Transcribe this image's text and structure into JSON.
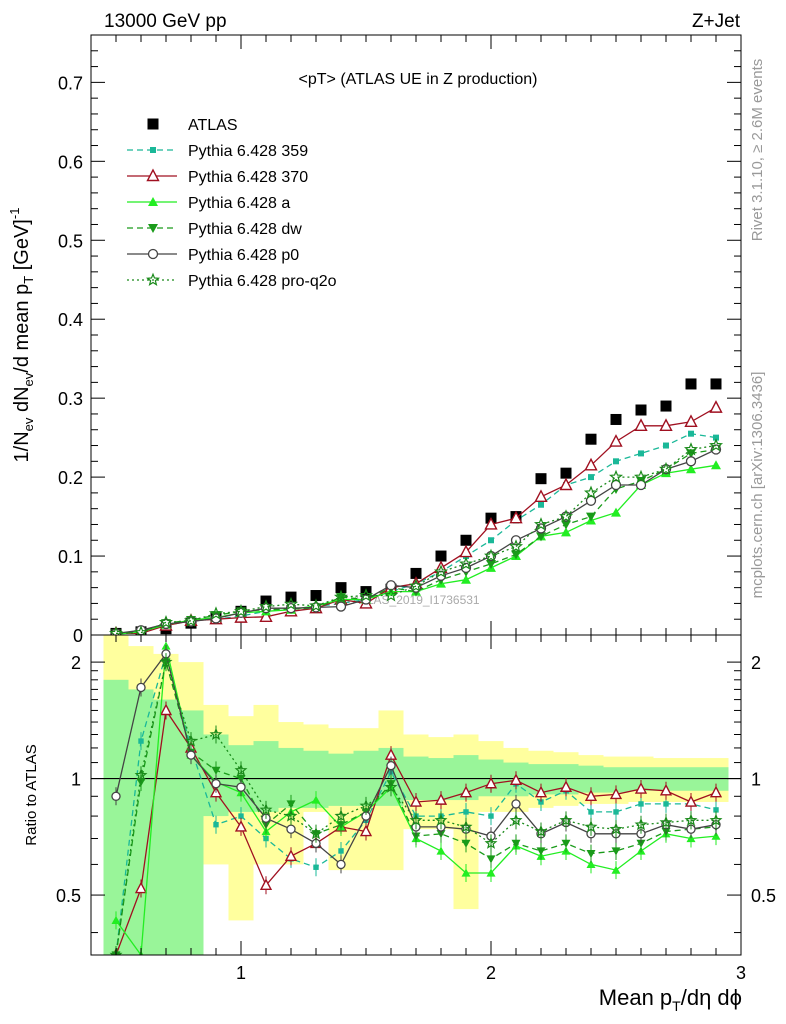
{
  "header": {
    "left": "13000 GeV pp",
    "right": "Z+Jet"
  },
  "side_labels": {
    "rivet": "Rivet 3.1.10, ≥ 2.6M events",
    "mcplots": "mcplots.cern.ch [arXiv:1306.3436]"
  },
  "watermark": "ATLAS_2019_I1736531",
  "colors": {
    "band_inner": "#99f599",
    "band_outer": "#ffff9e",
    "data": "#000000"
  },
  "chart_data": [
    {
      "id": "main",
      "type": "scatter",
      "title": "<pT> (ATLAS UE in Z production)",
      "ylabel": "1/Nev dNev/d mean pT [GeV]^-1",
      "xlim": [
        0.4,
        3.0
      ],
      "ylim": [
        0,
        0.76
      ],
      "yticks": [
        0,
        0.1,
        0.2,
        0.3,
        0.4,
        0.5,
        0.6,
        0.7
      ],
      "ytick_labels": [
        "0",
        "0.1",
        "0.2",
        "0.3",
        "0.4",
        "0.5",
        "0.6",
        "0.7"
      ],
      "legend_position": "top-left",
      "x": [
        0.5,
        0.6,
        0.7,
        0.8,
        0.9,
        1.0,
        1.1,
        1.2,
        1.3,
        1.4,
        1.5,
        1.6,
        1.7,
        1.8,
        1.9,
        2.0,
        2.1,
        2.2,
        2.3,
        2.4,
        2.5,
        2.6,
        2.7,
        2.8,
        2.9
      ],
      "series": [
        {
          "name": "ATLAS",
          "marker": "square",
          "color": "#000000",
          "line": "none",
          "values": [
            0.002,
            0.004,
            0.008,
            0.015,
            0.022,
            0.03,
            0.043,
            0.048,
            0.05,
            0.06,
            0.055,
            0.058,
            0.078,
            0.1,
            0.12,
            0.148,
            0.15,
            0.198,
            0.205,
            0.248,
            0.273,
            0.285,
            0.29,
            0.318,
            0.318
          ]
        },
        {
          "name": "Pythia 6.428 359",
          "marker": "square-small",
          "color": "#1ab898",
          "line": "dashed",
          "values": [
            0.002,
            0.005,
            0.012,
            0.018,
            0.02,
            0.024,
            0.03,
            0.033,
            0.036,
            0.04,
            0.045,
            0.055,
            0.065,
            0.08,
            0.1,
            0.12,
            0.145,
            0.165,
            0.19,
            0.2,
            0.22,
            0.23,
            0.24,
            0.255,
            0.25
          ]
        },
        {
          "name": "Pythia 6.428 370",
          "marker": "triangle-open",
          "color": "#a01020",
          "line": "solid",
          "values": [
            0.002,
            0.002,
            0.012,
            0.018,
            0.02,
            0.022,
            0.023,
            0.03,
            0.034,
            0.045,
            0.04,
            0.06,
            0.065,
            0.085,
            0.105,
            0.14,
            0.148,
            0.175,
            0.19,
            0.215,
            0.245,
            0.265,
            0.265,
            0.27,
            0.288
          ]
        },
        {
          "name": "Pythia 6.428 a",
          "marker": "triangle",
          "color": "#22ee22",
          "line": "solid",
          "values": [
            0.001,
            0.004,
            0.013,
            0.019,
            0.022,
            0.028,
            0.03,
            0.032,
            0.037,
            0.045,
            0.045,
            0.055,
            0.055,
            0.065,
            0.07,
            0.085,
            0.1,
            0.125,
            0.13,
            0.145,
            0.155,
            0.19,
            0.205,
            0.21,
            0.215
          ]
        },
        {
          "name": "Pythia 6.428 dw",
          "marker": "triangle-down",
          "color": "#1a9b1a",
          "line": "dashed",
          "values": [
            0.002,
            0.004,
            0.015,
            0.019,
            0.025,
            0.03,
            0.032,
            0.033,
            0.034,
            0.048,
            0.045,
            0.06,
            0.055,
            0.07,
            0.08,
            0.09,
            0.102,
            0.125,
            0.14,
            0.15,
            0.185,
            0.195,
            0.21,
            0.23,
            0.235
          ]
        },
        {
          "name": "Pythia 6.428 p0",
          "marker": "circle-open",
          "color": "#444444",
          "line": "solid",
          "values": [
            0.002,
            0.006,
            0.014,
            0.017,
            0.021,
            0.028,
            0.034,
            0.034,
            0.035,
            0.036,
            0.045,
            0.063,
            0.06,
            0.075,
            0.085,
            0.1,
            0.12,
            0.135,
            0.15,
            0.17,
            0.19,
            0.19,
            0.21,
            0.22,
            0.235
          ]
        },
        {
          "name": "Pythia 6.428 pro-q2o",
          "marker": "star-open",
          "color": "#1a8a1a",
          "line": "dotted",
          "values": [
            0.002,
            0.003,
            0.016,
            0.018,
            0.027,
            0.03,
            0.036,
            0.039,
            0.037,
            0.048,
            0.05,
            0.05,
            0.062,
            0.08,
            0.09,
            0.1,
            0.112,
            0.14,
            0.15,
            0.18,
            0.2,
            0.2,
            0.21,
            0.235,
            0.24
          ]
        }
      ]
    },
    {
      "id": "ratio",
      "type": "line",
      "ylabel": "Ratio to ATLAS",
      "xlabel": "Mean pT/dη dϕ",
      "xlim": [
        0.4,
        3.0
      ],
      "ylim": [
        0.35,
        2.35
      ],
      "log_y": true,
      "xticks": [
        1,
        2,
        3
      ],
      "xtick_labels": [
        "1",
        "2",
        "3"
      ],
      "yticks": [
        0.5,
        1,
        2
      ],
      "ytick_labels": [
        "0.5",
        "1",
        "2"
      ],
      "band_bins": [
        {
          "x0": 0.45,
          "x1": 0.55,
          "inner": [
            0.35,
            1.8
          ],
          "outer": [
            0.35,
            2.35
          ]
        },
        {
          "x0": 0.55,
          "x1": 0.65,
          "inner": [
            0.35,
            1.7
          ],
          "outer": [
            0.35,
            2.2
          ]
        },
        {
          "x0": 0.65,
          "x1": 0.75,
          "inner": [
            0.35,
            1.6
          ],
          "outer": [
            0.35,
            2.1
          ]
        },
        {
          "x0": 0.75,
          "x1": 0.85,
          "inner": [
            0.35,
            1.5
          ],
          "outer": [
            0.35,
            2.0
          ]
        },
        {
          "x0": 0.85,
          "x1": 0.95,
          "inner": [
            0.8,
            1.3
          ],
          "outer": [
            0.6,
            1.55
          ]
        },
        {
          "x0": 0.95,
          "x1": 1.05,
          "inner": [
            0.82,
            1.22
          ],
          "outer": [
            0.43,
            1.45
          ]
        },
        {
          "x0": 1.05,
          "x1": 1.15,
          "inner": [
            0.82,
            1.25
          ],
          "outer": [
            0.6,
            1.55
          ]
        },
        {
          "x0": 1.15,
          "x1": 1.25,
          "inner": [
            0.84,
            1.2
          ],
          "outer": [
            0.6,
            1.4
          ]
        },
        {
          "x0": 1.25,
          "x1": 1.35,
          "inner": [
            0.84,
            1.18
          ],
          "outer": [
            0.82,
            1.38
          ]
        },
        {
          "x0": 1.35,
          "x1": 1.45,
          "inner": [
            0.85,
            1.16
          ],
          "outer": [
            0.58,
            1.35
          ]
        },
        {
          "x0": 1.45,
          "x1": 1.55,
          "inner": [
            0.85,
            1.18
          ],
          "outer": [
            0.58,
            1.35
          ]
        },
        {
          "x0": 1.55,
          "x1": 1.65,
          "inner": [
            0.85,
            1.2
          ],
          "outer": [
            0.58,
            1.5
          ]
        },
        {
          "x0": 1.65,
          "x1": 1.75,
          "inner": [
            0.88,
            1.14
          ],
          "outer": [
            0.74,
            1.3
          ]
        },
        {
          "x0": 1.75,
          "x1": 1.85,
          "inner": [
            0.88,
            1.13
          ],
          "outer": [
            0.74,
            1.28
          ]
        },
        {
          "x0": 1.85,
          "x1": 1.95,
          "inner": [
            0.88,
            1.15
          ],
          "outer": [
            0.46,
            1.3
          ]
        },
        {
          "x0": 1.95,
          "x1": 2.05,
          "inner": [
            0.9,
            1.12
          ],
          "outer": [
            0.82,
            1.25
          ]
        },
        {
          "x0": 2.05,
          "x1": 2.15,
          "inner": [
            0.9,
            1.1
          ],
          "outer": [
            0.82,
            1.2
          ]
        },
        {
          "x0": 2.15,
          "x1": 2.25,
          "inner": [
            0.91,
            1.09
          ],
          "outer": [
            0.84,
            1.18
          ]
        },
        {
          "x0": 2.25,
          "x1": 2.35,
          "inner": [
            0.91,
            1.09
          ],
          "outer": [
            0.85,
            1.17
          ]
        },
        {
          "x0": 2.35,
          "x1": 2.45,
          "inner": [
            0.92,
            1.08
          ],
          "outer": [
            0.86,
            1.15
          ]
        },
        {
          "x0": 2.45,
          "x1": 2.55,
          "inner": [
            0.92,
            1.07
          ],
          "outer": [
            0.86,
            1.14
          ]
        },
        {
          "x0": 2.55,
          "x1": 2.65,
          "inner": [
            0.93,
            1.07
          ],
          "outer": [
            0.87,
            1.14
          ]
        },
        {
          "x0": 2.65,
          "x1": 2.75,
          "inner": [
            0.93,
            1.07
          ],
          "outer": [
            0.87,
            1.13
          ]
        },
        {
          "x0": 2.75,
          "x1": 2.85,
          "inner": [
            0.93,
            1.07
          ],
          "outer": [
            0.87,
            1.13
          ]
        },
        {
          "x0": 2.85,
          "x1": 2.95,
          "inner": [
            0.93,
            1.07
          ],
          "outer": [
            0.87,
            1.13
          ]
        }
      ],
      "x": [
        0.5,
        0.6,
        0.7,
        0.8,
        0.9,
        1.0,
        1.1,
        1.2,
        1.3,
        1.4,
        1.5,
        1.6,
        1.7,
        1.8,
        1.9,
        2.0,
        2.1,
        2.2,
        2.3,
        2.4,
        2.5,
        2.6,
        2.7,
        2.8,
        2.9
      ],
      "series": [
        {
          "name": "Pythia 6.428 359",
          "values": [
            0.35,
            1.25,
            2.1,
            1.2,
            0.76,
            0.8,
            0.7,
            0.62,
            0.59,
            0.65,
            0.78,
            1.04,
            0.8,
            0.8,
            0.82,
            0.8,
            0.97,
            0.87,
            0.93,
            0.82,
            0.82,
            0.86,
            0.86,
            0.86,
            0.83
          ]
        },
        {
          "name": "Pythia 6.428 370",
          "values": [
            0.35,
            0.52,
            1.5,
            1.2,
            0.92,
            0.75,
            0.53,
            0.63,
            0.68,
            0.75,
            0.73,
            1.15,
            0.87,
            0.88,
            0.92,
            0.97,
            0.99,
            0.92,
            0.95,
            0.9,
            0.91,
            0.94,
            0.93,
            0.87,
            0.92
          ]
        },
        {
          "name": "Pythia 6.428 a",
          "values": [
            0.43,
            0.35,
            2.2,
            1.15,
            0.98,
            0.92,
            0.73,
            0.82,
            0.88,
            0.75,
            0.82,
            0.95,
            0.7,
            0.65,
            0.57,
            0.57,
            0.67,
            0.63,
            0.65,
            0.6,
            0.58,
            0.65,
            0.72,
            0.7,
            0.71
          ]
        },
        {
          "name": "Pythia 6.428 dw",
          "values": [
            0.35,
            0.98,
            2.0,
            1.17,
            1.05,
            1.0,
            0.76,
            0.86,
            0.72,
            0.76,
            0.82,
            0.97,
            0.71,
            0.72,
            0.68,
            0.62,
            0.68,
            0.65,
            0.68,
            0.64,
            0.65,
            0.68,
            0.73,
            0.74,
            0.75
          ]
        },
        {
          "name": "Pythia 6.428 p0",
          "values": [
            0.9,
            1.72,
            2.1,
            1.15,
            0.97,
            0.95,
            0.79,
            0.74,
            0.68,
            0.6,
            0.8,
            1.08,
            0.75,
            0.75,
            0.74,
            0.71,
            0.86,
            0.72,
            0.77,
            0.72,
            0.72,
            0.72,
            0.76,
            0.74,
            0.76
          ]
        },
        {
          "name": "Pythia 6.428 pro-q2o",
          "values": [
            0.35,
            1.02,
            2.0,
            1.25,
            1.3,
            1.05,
            0.83,
            0.8,
            0.72,
            0.8,
            0.85,
            0.95,
            0.78,
            0.78,
            0.75,
            0.68,
            0.78,
            0.73,
            0.78,
            0.75,
            0.74,
            0.76,
            0.77,
            0.78,
            0.78
          ]
        }
      ]
    }
  ]
}
